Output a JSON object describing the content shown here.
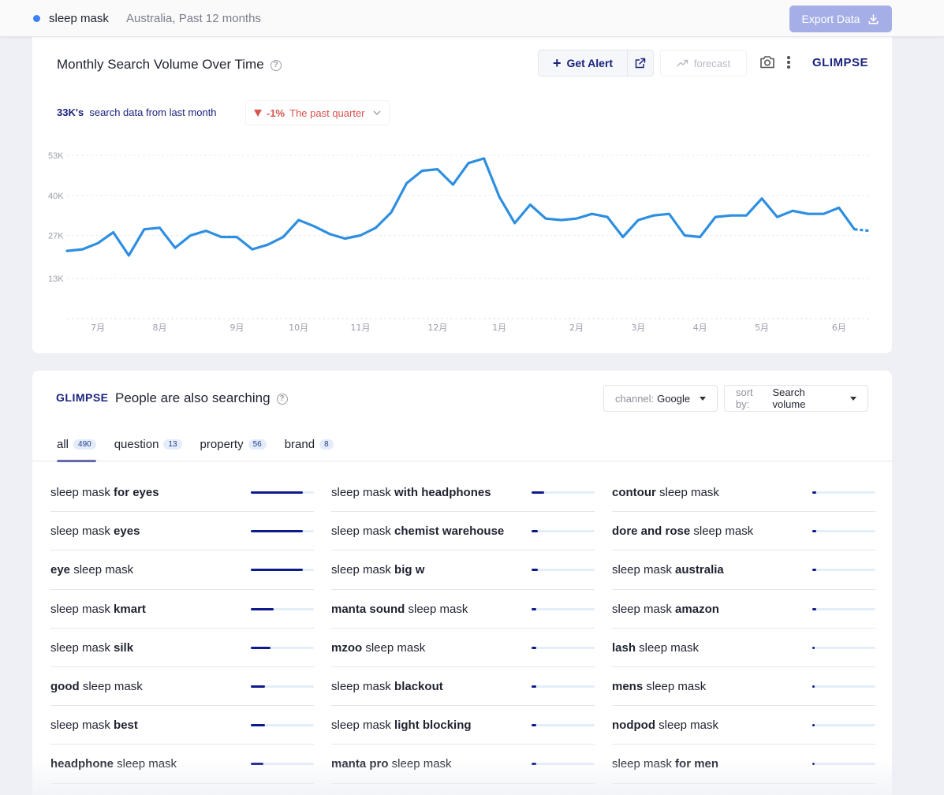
{
  "topbar": {
    "keyword": "sleep mask",
    "meta": "Australia, Past 12 months",
    "export_label": "Export Data"
  },
  "chart_card": {
    "title": "Monthly Search Volume Over Time",
    "get_alert_label": "Get Alert",
    "forecast_label": "forecast",
    "logo": "GLIMPSE",
    "summary_value": "33K's",
    "summary_text": "search data from last month",
    "trend_value": "-1%",
    "trend_text": "The past quarter",
    "colors": {
      "line": "#2e8fe0",
      "trend_down": "#d9534f",
      "brand": "#1a237e"
    }
  },
  "chart_data": {
    "type": "line",
    "title": "Monthly Search Volume Over Time",
    "xlabel": "",
    "ylabel": "",
    "ylim": [
      0,
      53000
    ],
    "yticks": [
      13000,
      27000,
      40000,
      53000
    ],
    "ytick_labels": [
      "13K",
      "27K",
      "40K",
      "53K"
    ],
    "xtick_labels": [
      "7月",
      "8月",
      "9月",
      "10月",
      "11月",
      "12月",
      "1月",
      "2月",
      "3月",
      "4月",
      "5月",
      "6月"
    ],
    "xtick_index": [
      2,
      6,
      11,
      15,
      19,
      24,
      28,
      33,
      37,
      41,
      45,
      50
    ],
    "grid": true,
    "series": [
      {
        "name": "",
        "values": [
          22000,
          22500,
          24500,
          28000,
          20500,
          29000,
          29500,
          23000,
          27000,
          28500,
          26500,
          26500,
          22500,
          24000,
          26500,
          32000,
          30000,
          27500,
          26000,
          27000,
          29500,
          34500,
          44000,
          48000,
          48500,
          43500,
          50500,
          52000,
          39500,
          31000,
          37000,
          32500,
          32000,
          32500,
          34000,
          33000,
          26500,
          32000,
          33500,
          34000,
          27000,
          26500,
          33000,
          33500,
          33500,
          39000,
          33000,
          35000,
          34000,
          34000,
          36000,
          29000,
          28500
        ],
        "projected_from_index": 51
      }
    ]
  },
  "list_card": {
    "logo": "GLIMPSE",
    "title": "People are also searching",
    "channel_label": "channel:",
    "channel_value": "Google",
    "sort_label": "sort by:",
    "sort_value": "Search volume",
    "tabs": [
      {
        "label": "all",
        "count": "490"
      },
      {
        "label": "question",
        "count": "13"
      },
      {
        "label": "property",
        "count": "56"
      },
      {
        "label": "brand",
        "count": "8"
      }
    ],
    "columns": [
      [
        {
          "pre": "sleep mask ",
          "bold": "for eyes",
          "post": "",
          "level": 0.82
        },
        {
          "pre": "sleep mask ",
          "bold": "eyes",
          "post": "",
          "level": 0.82
        },
        {
          "pre": "",
          "bold": "eye",
          "post": " sleep mask",
          "level": 0.82
        },
        {
          "pre": "sleep mask ",
          "bold": "kmart",
          "post": "",
          "level": 0.36
        },
        {
          "pre": "sleep mask ",
          "bold": "silk",
          "post": "",
          "level": 0.31
        },
        {
          "pre": "",
          "bold": "good",
          "post": " sleep mask",
          "level": 0.22
        },
        {
          "pre": "sleep mask ",
          "bold": "best",
          "post": "",
          "level": 0.22
        },
        {
          "pre": "",
          "bold": "headphone",
          "post": " sleep mask",
          "level": 0.2
        }
      ],
      [
        {
          "pre": "sleep mask ",
          "bold": "with headphones",
          "post": "",
          "level": 0.2
        },
        {
          "pre": "sleep mask ",
          "bold": "chemist warehouse",
          "post": "",
          "level": 0.1
        },
        {
          "pre": "sleep mask ",
          "bold": "big w",
          "post": "",
          "level": 0.1
        },
        {
          "pre": "",
          "bold": "manta sound",
          "post": " sleep mask",
          "level": 0.08
        },
        {
          "pre": "",
          "bold": "mzoo",
          "post": " sleep mask",
          "level": 0.08
        },
        {
          "pre": "sleep mask ",
          "bold": "blackout",
          "post": "",
          "level": 0.07
        },
        {
          "pre": "sleep mask ",
          "bold": "light blocking",
          "post": "",
          "level": 0.07
        },
        {
          "pre": "",
          "bold": "manta pro",
          "post": " sleep mask",
          "level": 0.07
        }
      ],
      [
        {
          "pre": "",
          "bold": "contour",
          "post": " sleep mask",
          "level": 0.06
        },
        {
          "pre": "",
          "bold": "dore and rose",
          "post": " sleep mask",
          "level": 0.06
        },
        {
          "pre": "sleep mask ",
          "bold": "australia",
          "post": "",
          "level": 0.06
        },
        {
          "pre": "sleep mask ",
          "bold": "amazon",
          "post": "",
          "level": 0.06
        },
        {
          "pre": "",
          "bold": "lash",
          "post": " sleep mask",
          "level": 0.04
        },
        {
          "pre": "",
          "bold": "mens",
          "post": " sleep mask",
          "level": 0.04
        },
        {
          "pre": "",
          "bold": "nodpod",
          "post": " sleep mask",
          "level": 0.04
        },
        {
          "pre": "sleep mask ",
          "bold": "for men",
          "post": "",
          "level": 0.04
        }
      ]
    ]
  }
}
